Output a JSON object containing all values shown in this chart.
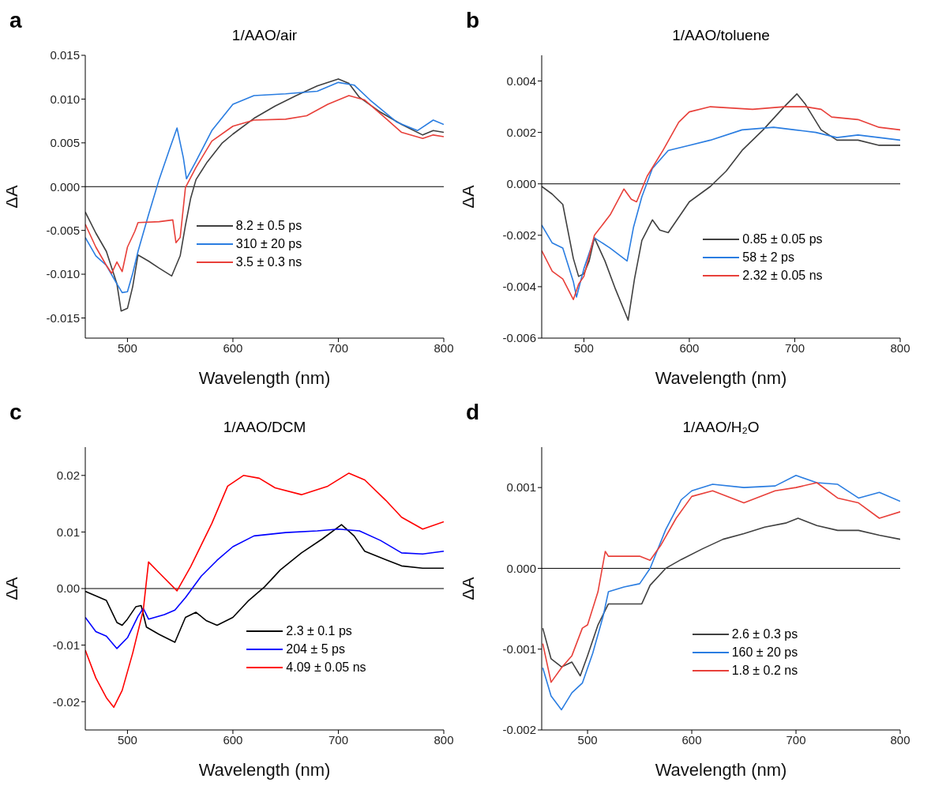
{
  "chart_data": [
    {
      "type": "line",
      "title": "1/AAO/air",
      "xlabel": "Wavelength (nm)",
      "ylabel": "ΔA",
      "annotations": [
        "a"
      ],
      "xlim": [
        460,
        800
      ],
      "xticks": [
        500,
        600,
        700,
        800
      ],
      "ylim": [
        -0.0173,
        0.015
      ],
      "yticks": [
        {
          "value": -0.015,
          "label": "-0.015"
        },
        {
          "value": -0.01,
          "label": "-0.010"
        },
        -0.005,
        {
          "value": 0,
          "label": "0.000"
        },
        0.005,
        {
          "value": 0.01,
          "label": "0.010"
        },
        0.015
      ],
      "grid": false,
      "legend": "center",
      "marker": "none",
      "line_style": "solid",
      "ref_lines": [
        {
          "axis": "y",
          "value": 0,
          "color": "#000000"
        }
      ],
      "series": [
        {
          "name": "8.2 ± 0.5 ps",
          "color": "#404040",
          "x": [
            460,
            470,
            480,
            490,
            494,
            500,
            505,
            510,
            520,
            530,
            542,
            550,
            555,
            560,
            565,
            575,
            590,
            600,
            620,
            640,
            660,
            680,
            700,
            710,
            720,
            740,
            760,
            780,
            790,
            800
          ],
          "values": [
            -0.0029,
            -0.0053,
            -0.0074,
            -0.0111,
            -0.0142,
            -0.0139,
            -0.0114,
            -0.0078,
            -0.0085,
            -0.0093,
            -0.0102,
            -0.0079,
            -0.0044,
            -0.0013,
            0.0008,
            0.0027,
            0.005,
            0.006,
            0.0078,
            0.0092,
            0.0104,
            0.0115,
            0.0123,
            0.0118,
            0.0102,
            0.0085,
            0.0071,
            0.0059,
            0.0064,
            0.0062
          ]
        },
        {
          "name": "310 ± 20 ps",
          "color": "#2a7de1",
          "x": [
            460,
            470,
            480,
            490,
            495,
            500,
            505,
            510,
            520,
            530,
            540,
            547,
            553,
            556,
            565,
            580,
            600,
            620,
            650,
            680,
            700,
            715,
            730,
            755,
            775,
            790,
            800
          ],
          "values": [
            -0.0058,
            -0.0079,
            -0.009,
            -0.0111,
            -0.0121,
            -0.012,
            -0.0099,
            -0.0074,
            -0.0032,
            0.0008,
            0.0043,
            0.0067,
            0.0033,
            0.0009,
            0.0029,
            0.0064,
            0.0094,
            0.0104,
            0.0106,
            0.0109,
            0.0119,
            0.0116,
            0.0099,
            0.0074,
            0.0064,
            0.0076,
            0.0071
          ]
        },
        {
          "name": "3.5 ± 0.3 ns",
          "color": "#e8403a",
          "x": [
            460,
            470,
            480,
            485,
            490,
            495,
            500,
            507,
            510,
            530,
            543,
            546,
            550,
            555,
            565,
            580,
            600,
            620,
            650,
            670,
            690,
            710,
            725,
            745,
            760,
            780,
            790,
            800
          ],
          "values": [
            -0.0043,
            -0.0069,
            -0.009,
            -0.0099,
            -0.0086,
            -0.0097,
            -0.0069,
            -0.0051,
            -0.0041,
            -0.004,
            -0.0038,
            -0.0064,
            -0.0058,
            -0.0001,
            0.0022,
            0.0052,
            0.0069,
            0.0076,
            0.0077,
            0.0081,
            0.0094,
            0.0104,
            0.0099,
            0.0078,
            0.0062,
            0.0055,
            0.0059,
            0.0057
          ]
        }
      ]
    },
    {
      "type": "line",
      "title": "1/AAO/toluene",
      "xlabel": "Wavelength (nm)",
      "ylabel": "ΔA",
      "annotations": [
        "b"
      ],
      "xlim": [
        460,
        800
      ],
      "xticks": [
        500,
        600,
        700,
        800
      ],
      "ylim": [
        -0.006,
        0.005
      ],
      "yticks": [
        -0.006,
        -0.004,
        -0.002,
        {
          "value": 0,
          "label": "0.000"
        },
        0.002,
        0.004
      ],
      "grid": false,
      "legend": "bottom right",
      "marker": "none",
      "line_style": "solid",
      "ref_lines": [
        {
          "axis": "y",
          "value": 0,
          "color": "#000000"
        }
      ],
      "series": [
        {
          "name": "0.85 ± 0.05 ps",
          "color": "#404040",
          "x": [
            460,
            470,
            480,
            490,
            495,
            500,
            505,
            510,
            520,
            530,
            542,
            548,
            555,
            565,
            572,
            580,
            600,
            620,
            635,
            650,
            670,
            690,
            702,
            710,
            725,
            740,
            760,
            780,
            800
          ],
          "values": [
            -0.0001,
            -0.0004,
            -0.0008,
            -0.0029,
            -0.0036,
            -0.0035,
            -0.003,
            -0.0021,
            -0.003,
            -0.0041,
            -0.0053,
            -0.0037,
            -0.0022,
            -0.0014,
            -0.0018,
            -0.0019,
            -0.0007,
            -0.0001,
            0.0005,
            0.0013,
            0.0021,
            0.003,
            0.0035,
            0.0031,
            0.0021,
            0.0017,
            0.0017,
            0.0015,
            0.0015
          ]
        },
        {
          "name": "58 ± 2 ps",
          "color": "#2a7de1",
          "x": [
            460,
            470,
            480,
            490,
            493,
            500,
            510,
            525,
            541,
            547,
            555,
            565,
            580,
            600,
            620,
            650,
            680,
            700,
            720,
            740,
            760,
            780,
            800
          ],
          "values": [
            -0.0016,
            -0.0023,
            -0.0025,
            -0.0038,
            -0.0044,
            -0.0033,
            -0.0021,
            -0.0025,
            -0.003,
            -0.0017,
            -0.0005,
            0.0006,
            0.0013,
            0.0015,
            0.0017,
            0.0021,
            0.0022,
            0.0021,
            0.002,
            0.0018,
            0.0019,
            0.0018,
            0.0017
          ]
        },
        {
          "name": "2.32 ± 0.05 ns",
          "color": "#e8403a",
          "x": [
            460,
            470,
            480,
            490,
            495,
            500,
            510,
            525,
            538,
            545,
            550,
            560,
            575,
            590,
            600,
            620,
            660,
            690,
            710,
            725,
            735,
            760,
            780,
            800
          ],
          "values": [
            -0.0026,
            -0.0034,
            -0.0037,
            -0.0045,
            -0.0039,
            -0.0036,
            -0.002,
            -0.0012,
            -0.0002,
            -0.0006,
            -0.0007,
            0.0003,
            0.0013,
            0.0024,
            0.0028,
            0.003,
            0.0029,
            0.003,
            0.003,
            0.0029,
            0.0026,
            0.0025,
            0.0022,
            0.0021
          ]
        }
      ]
    },
    {
      "type": "line",
      "title": "1/AAO/DCM",
      "xlabel": "Wavelength (nm)",
      "ylabel": "ΔA",
      "annotations": [
        "c"
      ],
      "xlim": [
        460,
        800
      ],
      "xticks": [
        500,
        600,
        700,
        800
      ],
      "ylim": [
        -0.025,
        0.025
      ],
      "yticks": [
        -0.02,
        -0.01,
        {
          "value": 0,
          "label": "0.00"
        },
        0.01,
        0.02
      ],
      "grid": false,
      "legend": "bottom right",
      "marker": "none",
      "line_style": "solid",
      "ref_lines": [
        {
          "axis": "y",
          "value": 0,
          "color": "#000000"
        }
      ],
      "series": [
        {
          "name": "2.3 ± 0.1 ps",
          "color": "#000000",
          "x": [
            460,
            470,
            480,
            490,
            495,
            500,
            508,
            513,
            518,
            530,
            545,
            555,
            565,
            575,
            585,
            600,
            615,
            630,
            645,
            665,
            685,
            703,
            715,
            725,
            745,
            760,
            780,
            800
          ],
          "values": [
            -0.0005,
            -0.0013,
            -0.0021,
            -0.006,
            -0.0065,
            -0.0054,
            -0.0032,
            -0.003,
            -0.0068,
            -0.0081,
            -0.0095,
            -0.0051,
            -0.0042,
            -0.0057,
            -0.0065,
            -0.0051,
            -0.0021,
            0.0003,
            0.0033,
            0.0063,
            0.0088,
            0.0113,
            0.0093,
            0.0066,
            0.0051,
            0.004,
            0.0036,
            0.0036
          ]
        },
        {
          "name": "204 ± 5 ps",
          "color": "#0000ff",
          "x": [
            460,
            470,
            480,
            490,
            500,
            510,
            515,
            520,
            535,
            545,
            555,
            570,
            585,
            600,
            620,
            650,
            680,
            700,
            720,
            740,
            760,
            780,
            800
          ],
          "values": [
            -0.0051,
            -0.0076,
            -0.0084,
            -0.0106,
            -0.0087,
            -0.0049,
            -0.0035,
            -0.0054,
            -0.0046,
            -0.0038,
            -0.0016,
            0.0022,
            0.005,
            0.0074,
            0.0093,
            0.0099,
            0.0102,
            0.0105,
            0.0102,
            0.0085,
            0.0063,
            0.0061,
            0.0066
          ]
        },
        {
          "name": "4.09 ± 0.05 ns",
          "color": "#ff0000",
          "x": [
            460,
            470,
            480,
            487,
            495,
            505,
            515,
            520,
            530,
            547,
            560,
            580,
            595,
            610,
            625,
            640,
            665,
            690,
            710,
            725,
            745,
            760,
            780,
            800
          ],
          "values": [
            -0.0109,
            -0.0158,
            -0.0193,
            -0.021,
            -0.018,
            -0.0114,
            -0.0038,
            0.0047,
            0.0028,
            -0.0004,
            0.0039,
            0.0115,
            0.0181,
            0.02,
            0.0195,
            0.0178,
            0.0166,
            0.0181,
            0.0204,
            0.0192,
            0.0156,
            0.0126,
            0.0105,
            0.0118
          ]
        }
      ]
    },
    {
      "type": "line",
      "title": "1/AAO/H₂O",
      "xlabel": "Wavelength (nm)",
      "ylabel": "ΔA",
      "annotations": [
        "d"
      ],
      "xlim": [
        456,
        800
      ],
      "xticks": [
        500,
        600,
        700,
        800
      ],
      "ylim": [
        -0.002,
        0.0015
      ],
      "yticks": [
        -0.002,
        -0.001,
        {
          "value": 0,
          "label": "0.000"
        },
        0.001
      ],
      "grid": false,
      "legend": "bottom",
      "marker": "none",
      "line_style": "solid",
      "ref_lines": [
        {
          "axis": "y",
          "value": 0,
          "color": "#000000"
        }
      ],
      "series": [
        {
          "name": "2.6 ± 0.3 ps",
          "color": "#404040",
          "x": [
            457,
            465,
            475,
            485,
            493,
            500,
            510,
            520,
            540,
            552,
            560,
            575,
            590,
            610,
            630,
            650,
            670,
            690,
            702,
            720,
            740,
            760,
            780,
            800
          ],
          "values": [
            -0.00074,
            -0.00112,
            -0.00122,
            -0.00116,
            -0.00133,
            -0.00108,
            -0.0007,
            -0.00044,
            -0.00044,
            -0.00044,
            -0.00021,
            0,
            0.00011,
            0.00024,
            0.00036,
            0.00043,
            0.00051,
            0.00056,
            0.00062,
            0.00053,
            0.00047,
            0.00047,
            0.00041,
            0.00036
          ]
        },
        {
          "name": "160 ± 20 ps",
          "color": "#2a7de1",
          "x": [
            457,
            465,
            475,
            485,
            495,
            505,
            515,
            520,
            535,
            550,
            560,
            575,
            590,
            600,
            620,
            650,
            680,
            700,
            720,
            740,
            760,
            780,
            800
          ],
          "values": [
            -0.00123,
            -0.00158,
            -0.00175,
            -0.00154,
            -0.00142,
            -0.00105,
            -0.00059,
            -0.00029,
            -0.00023,
            -0.00019,
            0,
            0.00048,
            0.00085,
            0.00096,
            0.00104,
            0.001,
            0.00102,
            0.00115,
            0.00106,
            0.00104,
            0.00087,
            0.00094,
            0.00083
          ]
        },
        {
          "name": "1.8 ± 0.2 ns",
          "color": "#e8403a",
          "x": [
            457,
            465,
            475,
            485,
            495,
            500,
            510,
            517,
            520,
            550,
            560,
            570,
            585,
            600,
            620,
            650,
            680,
            700,
            720,
            740,
            760,
            780,
            800
          ],
          "values": [
            -0.00093,
            -0.00141,
            -0.00123,
            -0.00108,
            -0.00074,
            -0.0007,
            -0.00029,
            0.00021,
            0.00015,
            0.00015,
            0.0001,
            0.00028,
            0.00062,
            0.00089,
            0.00096,
            0.00081,
            0.00096,
            0.001,
            0.00106,
            0.00087,
            0.00081,
            0.00062,
            0.0007
          ]
        }
      ]
    }
  ]
}
